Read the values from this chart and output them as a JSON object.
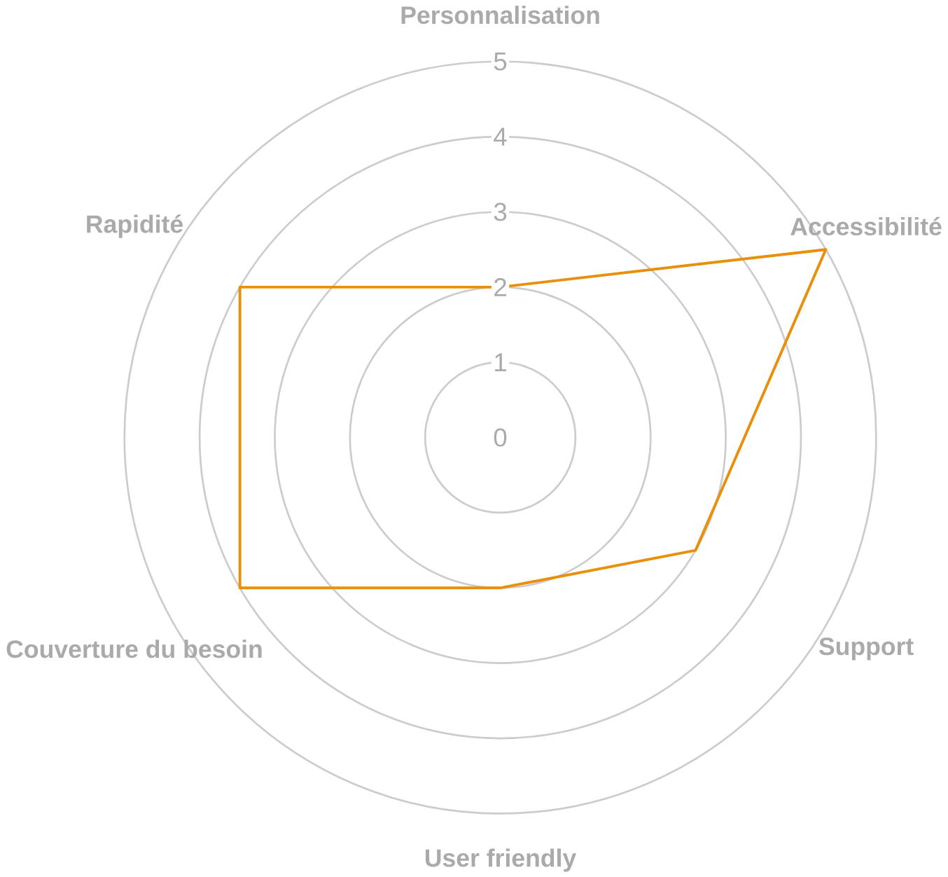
{
  "chart_data": {
    "type": "radar",
    "categories": [
      "Personnalisation",
      "Accessibilité",
      "Support",
      "User friendly",
      "Couverture du besoin",
      "Rapidité"
    ],
    "series": [
      {
        "color": "#e8900c",
        "values": [
          2,
          5,
          3,
          2,
          4,
          4
        ]
      }
    ],
    "ylim": [
      0,
      5
    ],
    "yticks": [
      0,
      1,
      2,
      3,
      4,
      5
    ],
    "grid": true
  }
}
